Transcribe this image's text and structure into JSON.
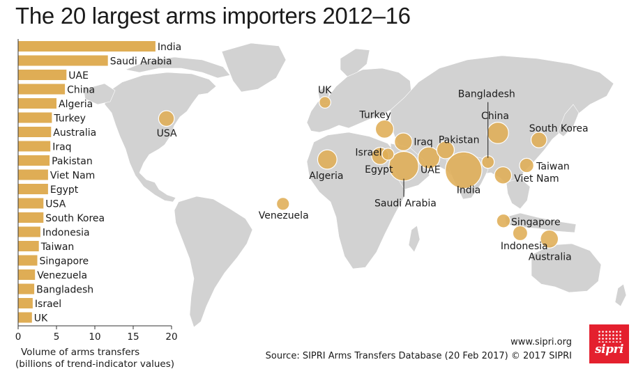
{
  "title": "The 20 largest arms importers 2012–16",
  "colors": {
    "bar": "#dfad55",
    "bubble": "#dfad55",
    "bubble_stroke": "#ffffff",
    "land": "#d2d2d2",
    "axis": "#333333",
    "logo": "#e4202e"
  },
  "chart_data": [
    {
      "type": "bar",
      "orientation": "horizontal",
      "categories": [
        "India",
        "Saudi Arabia",
        "UAE",
        "China",
        "Algeria",
        "Turkey",
        "Australia",
        "Iraq",
        "Pakistan",
        "Viet Nam",
        "Egypt",
        "USA",
        "South Korea",
        "Indonesia",
        "Taiwan",
        "Singapore",
        "Venezuela",
        "Bangladesh",
        "Israel",
        "UK"
      ],
      "values": [
        17.9,
        11.7,
        6.3,
        6.1,
        5.0,
        4.4,
        4.3,
        4.2,
        4.1,
        3.9,
        3.9,
        3.3,
        3.3,
        2.9,
        2.7,
        2.5,
        2.2,
        2.1,
        1.9,
        1.8
      ],
      "xlabel": "Volume of arms transfers",
      "xlabel_sub": "(billions of trend-indicator values)",
      "xticks": [
        "0",
        "5",
        "10",
        "15",
        "20"
      ],
      "xlim": [
        0,
        20
      ]
    },
    {
      "type": "bubble-map",
      "points": [
        {
          "name": "India",
          "value": 17.9,
          "lon": 78,
          "lat": 22
        },
        {
          "name": "Saudi Arabia",
          "value": 11.7,
          "lon": 45,
          "lat": 24
        },
        {
          "name": "UAE",
          "value": 6.3,
          "lon": 54,
          "lat": 24
        },
        {
          "name": "China",
          "value": 6.1,
          "lon": 104,
          "lat": 35
        },
        {
          "name": "Algeria",
          "value": 5.0,
          "lon": 3,
          "lat": 28
        },
        {
          "name": "Turkey",
          "value": 4.4,
          "lon": 35,
          "lat": 39
        },
        {
          "name": "Australia",
          "value": 4.3,
          "lon": 134,
          "lat": -25
        },
        {
          "name": "Iraq",
          "value": 4.2,
          "lon": 44,
          "lat": 33
        },
        {
          "name": "Pakistan",
          "value": 4.1,
          "lon": 69,
          "lat": 30
        },
        {
          "name": "Viet Nam",
          "value": 3.9,
          "lon": 106,
          "lat": 16
        },
        {
          "name": "Egypt",
          "value": 3.9,
          "lon": 30,
          "lat": 27
        },
        {
          "name": "USA",
          "value": 3.3,
          "lon": -98,
          "lat": 38
        },
        {
          "name": "South Korea",
          "value": 3.3,
          "lon": 128,
          "lat": 36
        },
        {
          "name": "Indonesia",
          "value": 2.9,
          "lon": 113,
          "lat": -1
        },
        {
          "name": "Taiwan",
          "value": 2.7,
          "lon": 121,
          "lat": 23.7
        },
        {
          "name": "Singapore",
          "value": 2.5,
          "lon": 104,
          "lat": 1.3
        },
        {
          "name": "Venezuela",
          "value": 2.2,
          "lon": -66,
          "lat": 7
        },
        {
          "name": "Bangladesh",
          "value": 2.1,
          "lon": 90,
          "lat": 24
        },
        {
          "name": "Israel",
          "value": 1.9,
          "lon": 35,
          "lat": 31
        },
        {
          "name": "UK",
          "value": 1.8,
          "lon": -2,
          "lat": 54
        }
      ]
    }
  ],
  "footer": {
    "website": "www.sipri.org",
    "source": "Source: SIPRI Arms Transfers Database (20 Feb 2017)  © 2017 SIPRI",
    "logo_text": "sipri"
  }
}
